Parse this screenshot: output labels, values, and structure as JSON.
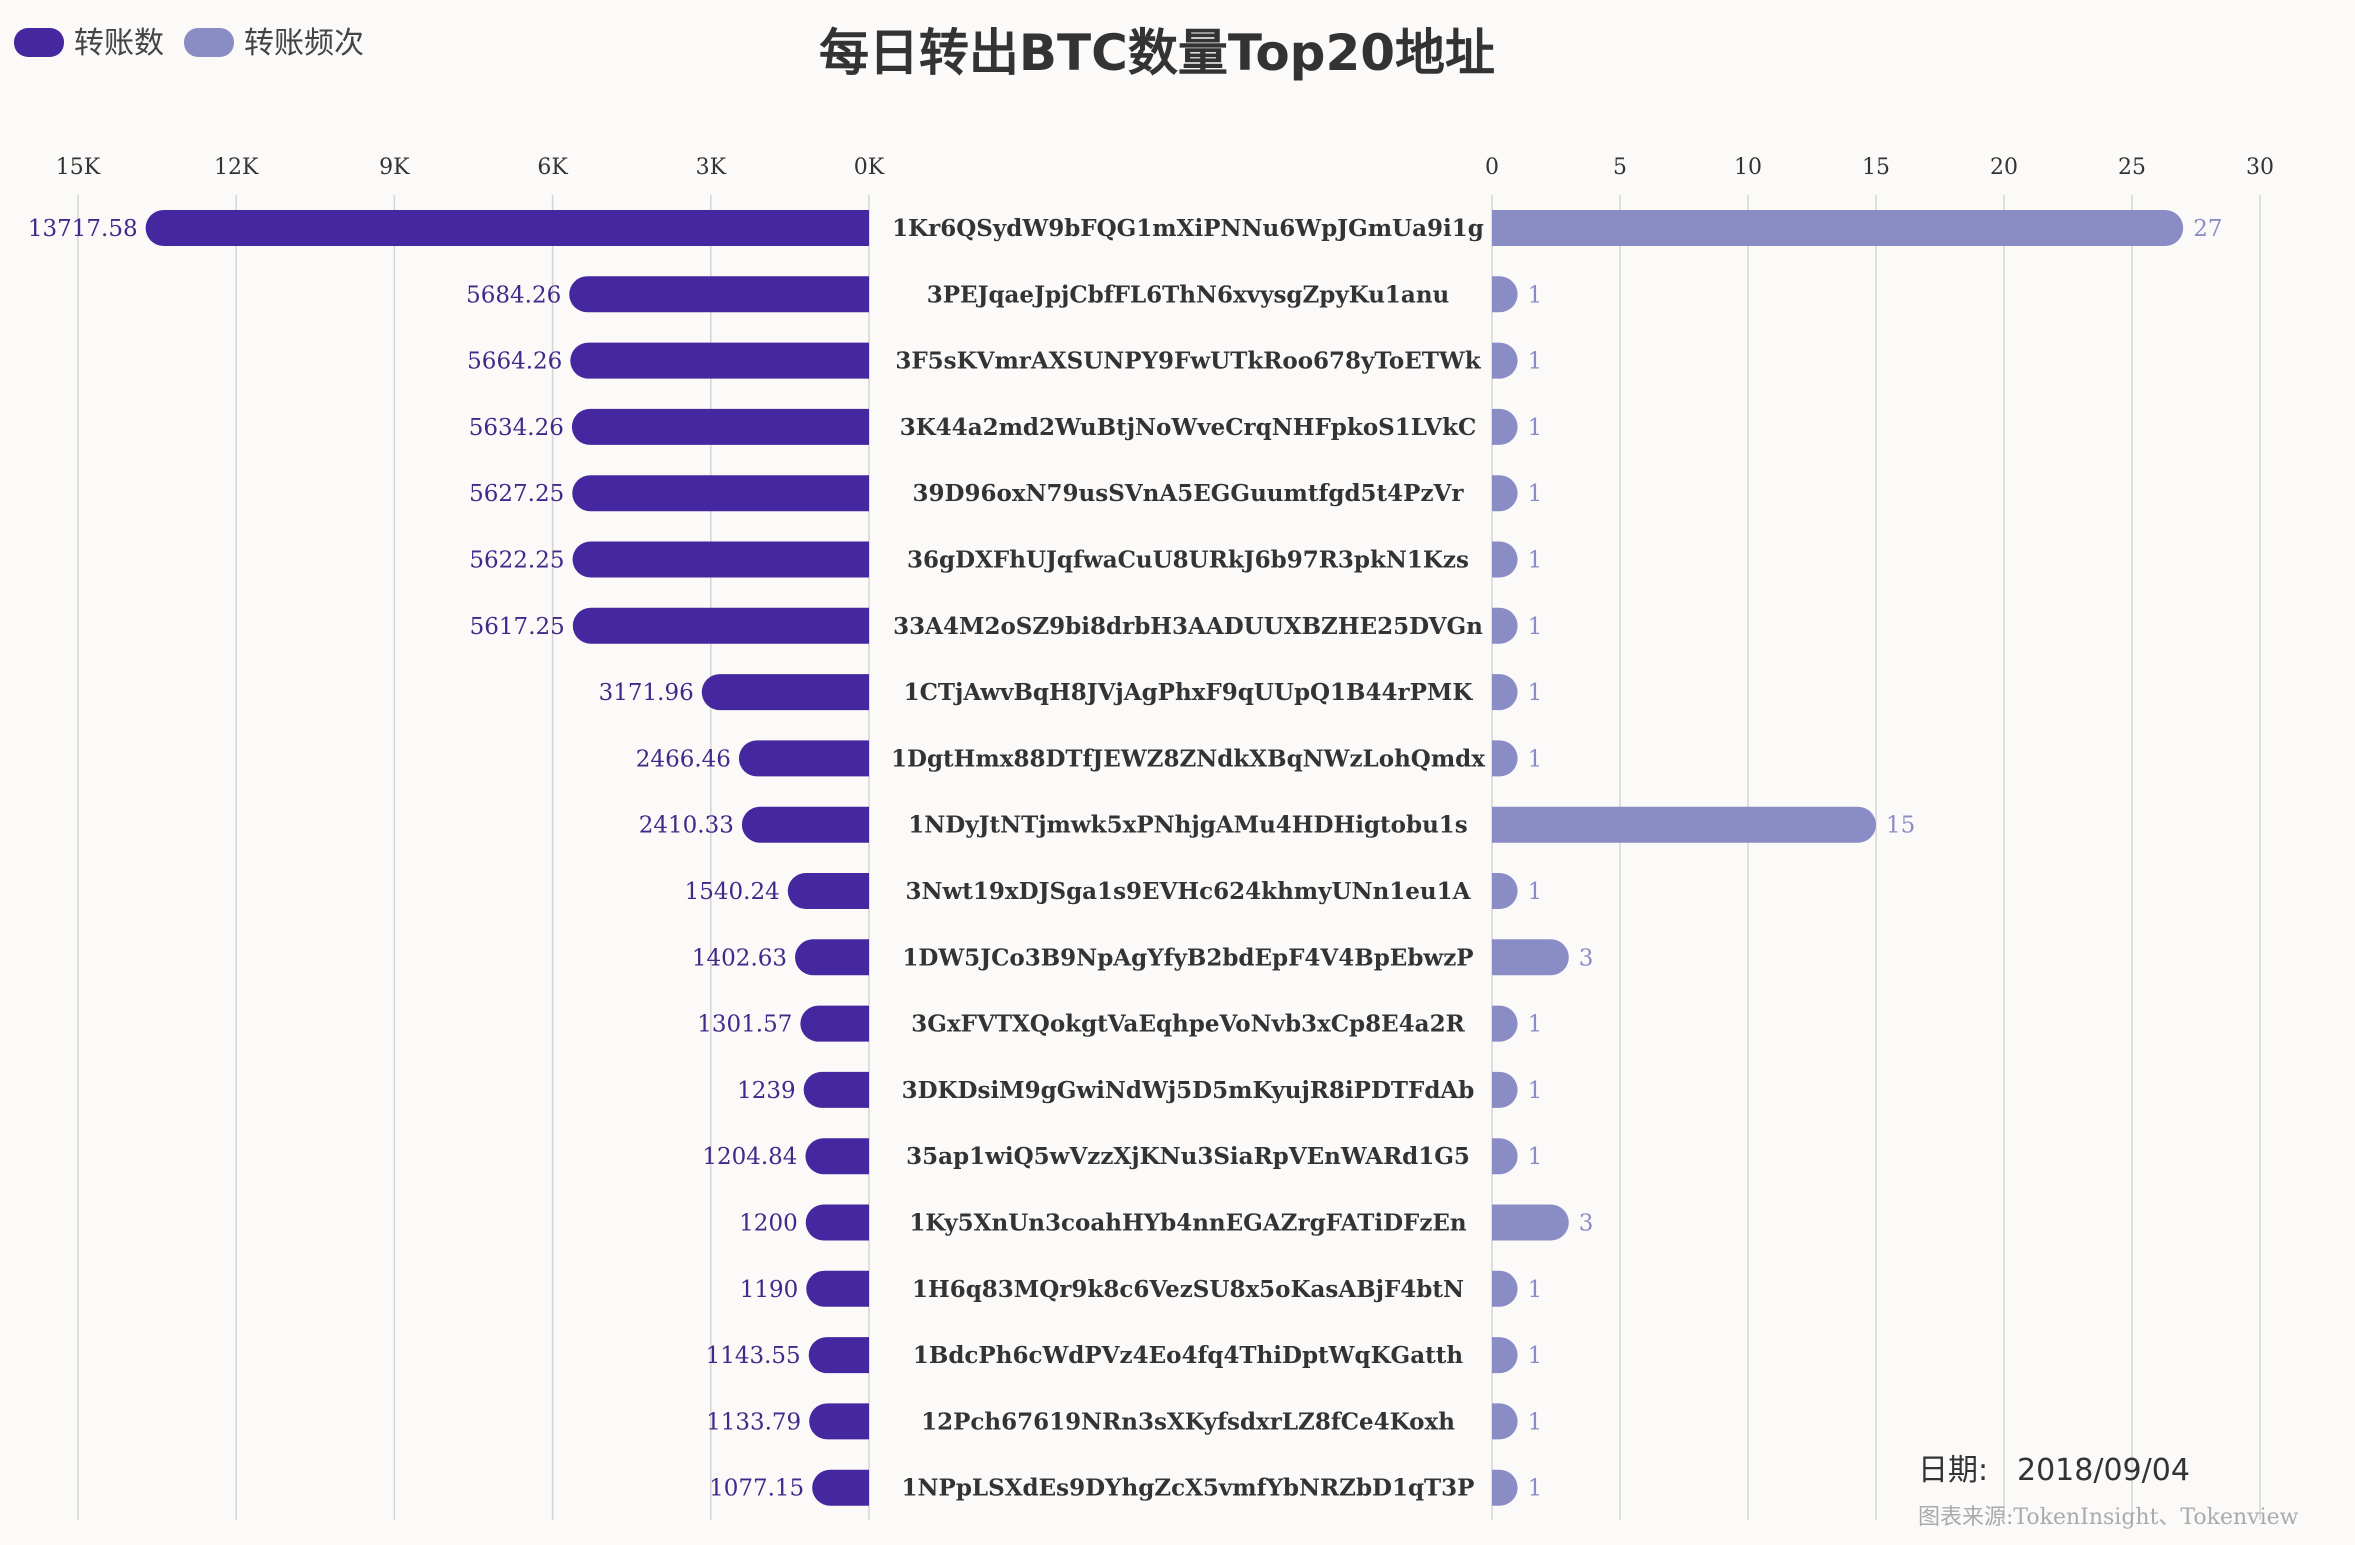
{
  "chart_data": {
    "type": "bar",
    "title": "每日转出BTC数量Top20地址",
    "legend": [
      {
        "name": "转账数",
        "color": "#4527a0"
      },
      {
        "name": "转账频次",
        "color": "#8a8cc6"
      }
    ],
    "left_axis": {
      "ticks": [
        "15K",
        "12K",
        "9K",
        "6K",
        "3K",
        "0K"
      ],
      "range": [
        0,
        15000
      ]
    },
    "right_axis": {
      "ticks": [
        "0",
        "5",
        "10",
        "15",
        "20",
        "25",
        "30"
      ],
      "range": [
        0,
        30
      ]
    },
    "categories": [
      "1Kr6QSydW9bFQG1mXiPNNu6WpJGmUa9i1g",
      "3PEJqaeJpjCbfFL6ThN6xvysgZpyKu1anu",
      "3F5sKVmrAXSUNPY9FwUTkRoo678yToETWk",
      "3K44a2md2WuBtjNoWveCrqNHFpkoS1LVkC",
      "39D96oxN79usSVnA5EGGuumtfgd5t4PzVr",
      "36gDXFhUJqfwaCuU8URkJ6b97R3pkN1Kzs",
      "33A4M2oSZ9bi8drbH3AADUUXBZHE25DVGn",
      "1CTjAwvBqH8JVjAgPhxF9qUUpQ1B44rPMK",
      "1DgtHmx88DTfJEWZ8ZNdkXBqNWzLohQmdx",
      "1NDyJtNTjmwk5xPNhjgAMu4HDHigtobu1s",
      "3Nwt19xDJSga1s9EVHc624khmyUNn1eu1A",
      "1DW5JCo3B9NpAgYfyB2bdEpF4V4BpEbwzP",
      "3GxFVTXQokgtVaEqhpeVoNvb3xCp8E4a2R",
      "3DKDsiM9gGwiNdWj5D5mKyujR8iPDTFdAb",
      "35ap1wiQ5wVzzXjKNu3SiaRpVEnWARd1G5",
      "1Ky5XnUn3coahHYb4nnEGAZrgFATiDFzEn",
      "1H6q83MQr9k8c6VezSU8x5oKasABjF4btN",
      "1BdcPh6cWdPVz4Eo4fq4ThiDptWqKGatth",
      "12Pch67619NRn3sXKyfsdxrLZ8fCe4Koxh",
      "1NPpLSXdEs9DYhgZcX5vmfYbNRZbD1qT3P"
    ],
    "series": [
      {
        "name": "转账数",
        "color": "#4527a0",
        "values": [
          13717.58,
          5684.26,
          5664.26,
          5634.26,
          5627.25,
          5622.25,
          5617.25,
          3171.96,
          2466.46,
          2410.33,
          1540.24,
          1402.63,
          1301.57,
          1239,
          1204.84,
          1200,
          1190,
          1143.55,
          1133.79,
          1077.15
        ],
        "labels": [
          "13717.58",
          "5684.26",
          "5664.26",
          "5634.26",
          "5627.25",
          "5622.25",
          "5617.25",
          "3171.96",
          "2466.46",
          "2410.33",
          "1540.24",
          "1402.63",
          "1301.57",
          "1239",
          "1204.84",
          "1200",
          "1190",
          "1143.55",
          "1133.79",
          "1077.15"
        ]
      },
      {
        "name": "转账频次",
        "color": "#8a8cc6",
        "values": [
          27,
          1,
          1,
          1,
          1,
          1,
          1,
          1,
          1,
          15,
          1,
          3,
          1,
          1,
          1,
          3,
          1,
          1,
          1,
          1
        ],
        "labels": [
          "27",
          "1",
          "1",
          "1",
          "1",
          "1",
          "1",
          "1",
          "1",
          "15",
          "1",
          "3",
          "1",
          "1",
          "1",
          "3",
          "1",
          "1",
          "1",
          "1"
        ]
      }
    ],
    "grid": true,
    "legend_position": "top-left"
  },
  "footer": {
    "date_label": "日期:",
    "date_value": "2018/09/04",
    "source": "图表来源:TokenInsight、Tokenview"
  }
}
